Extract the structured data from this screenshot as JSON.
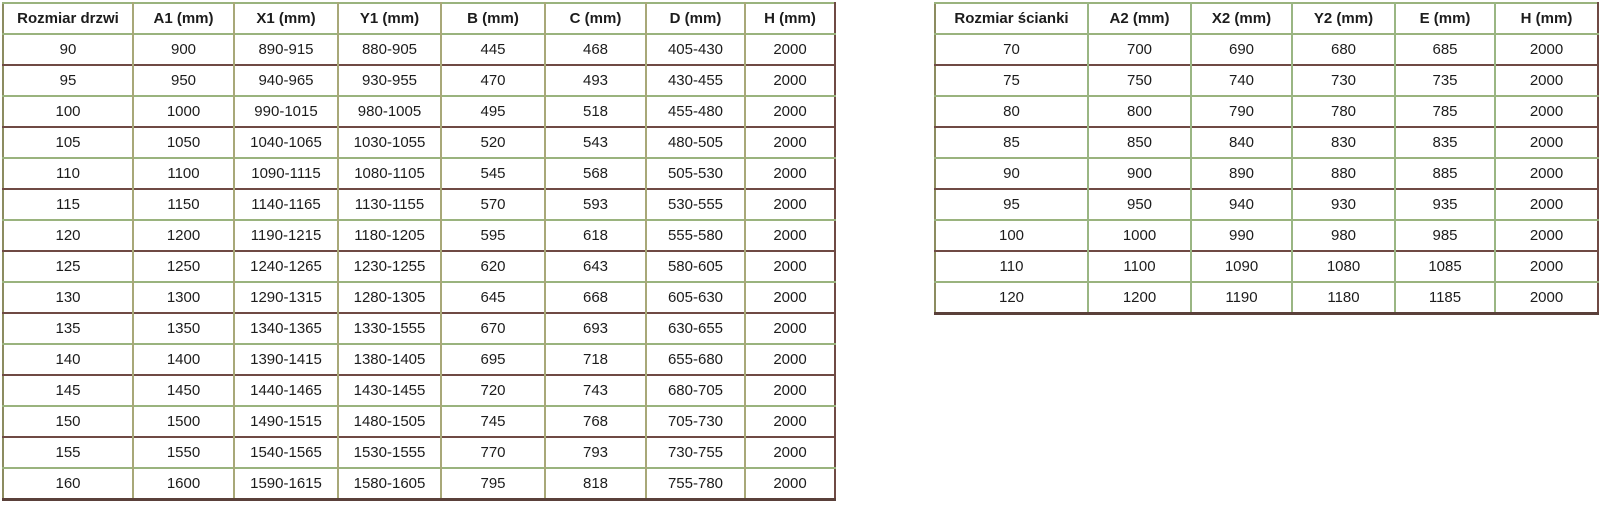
{
  "chart_data": [
    {
      "type": "table",
      "name": "door-sizes",
      "headers": [
        "Rozmiar drzwi",
        "A1 (mm)",
        "X1 (mm)",
        "Y1 (mm)",
        "B (mm)",
        "C (mm)",
        "D (mm)",
        "H (mm)"
      ],
      "rows": [
        [
          "90",
          "900",
          "890-915",
          "880-905",
          "445",
          "468",
          "405-430",
          "2000"
        ],
        [
          "95",
          "950",
          "940-965",
          "930-955",
          "470",
          "493",
          "430-455",
          "2000"
        ],
        [
          "100",
          "1000",
          "990-1015",
          "980-1005",
          "495",
          "518",
          "455-480",
          "2000"
        ],
        [
          "105",
          "1050",
          "1040-1065",
          "1030-1055",
          "520",
          "543",
          "480-505",
          "2000"
        ],
        [
          "110",
          "1100",
          "1090-1115",
          "1080-1105",
          "545",
          "568",
          "505-530",
          "2000"
        ],
        [
          "115",
          "1150",
          "1140-1165",
          "1130-1155",
          "570",
          "593",
          "530-555",
          "2000"
        ],
        [
          "120",
          "1200",
          "1190-1215",
          "1180-1205",
          "595",
          "618",
          "555-580",
          "2000"
        ],
        [
          "125",
          "1250",
          "1240-1265",
          "1230-1255",
          "620",
          "643",
          "580-605",
          "2000"
        ],
        [
          "130",
          "1300",
          "1290-1315",
          "1280-1305",
          "645",
          "668",
          "605-630",
          "2000"
        ],
        [
          "135",
          "1350",
          "1340-1365",
          "1330-1555",
          "670",
          "693",
          "630-655",
          "2000"
        ],
        [
          "140",
          "1400",
          "1390-1415",
          "1380-1405",
          "695",
          "718",
          "655-680",
          "2000"
        ],
        [
          "145",
          "1450",
          "1440-1465",
          "1430-1455",
          "720",
          "743",
          "680-705",
          "2000"
        ],
        [
          "150",
          "1500",
          "1490-1515",
          "1480-1505",
          "745",
          "768",
          "705-730",
          "2000"
        ],
        [
          "155",
          "1550",
          "1540-1565",
          "1530-1555",
          "770",
          "793",
          "730-755",
          "2000"
        ],
        [
          "160",
          "1600",
          "1590-1615",
          "1580-1605",
          "795",
          "818",
          "755-780",
          "2000"
        ]
      ]
    },
    {
      "type": "table",
      "name": "wall-panel-sizes",
      "headers": [
        "Rozmiar ścianki",
        "A2 (mm)",
        "X2 (mm)",
        "Y2 (mm)",
        "E (mm)",
        "H (mm)"
      ],
      "rows": [
        [
          "70",
          "700",
          "690",
          "680",
          "685",
          "2000"
        ],
        [
          "75",
          "750",
          "740",
          "730",
          "735",
          "2000"
        ],
        [
          "80",
          "800",
          "790",
          "780",
          "785",
          "2000"
        ],
        [
          "85",
          "850",
          "840",
          "830",
          "835",
          "2000"
        ],
        [
          "90",
          "900",
          "890",
          "880",
          "885",
          "2000"
        ],
        [
          "95",
          "950",
          "940",
          "930",
          "935",
          "2000"
        ],
        [
          "100",
          "1000",
          "990",
          "980",
          "985",
          "2000"
        ],
        [
          "110",
          "1100",
          "1090",
          "1080",
          "1085",
          "2000"
        ],
        [
          "120",
          "1200",
          "1190",
          "1180",
          "1185",
          "2000"
        ]
      ]
    }
  ],
  "colors": {
    "bg": "#ffffff",
    "text": "#1c1c1c",
    "v_left": "#a8a878",
    "v_right": "#9ab683",
    "h_green": "#9ab37e",
    "h_maroon": "#6f4a44",
    "outer_top": "#9ab37e",
    "outer_left": "#8c8c60",
    "outer_bottom": "#5a403a",
    "outer_right": "#6f4a44"
  }
}
